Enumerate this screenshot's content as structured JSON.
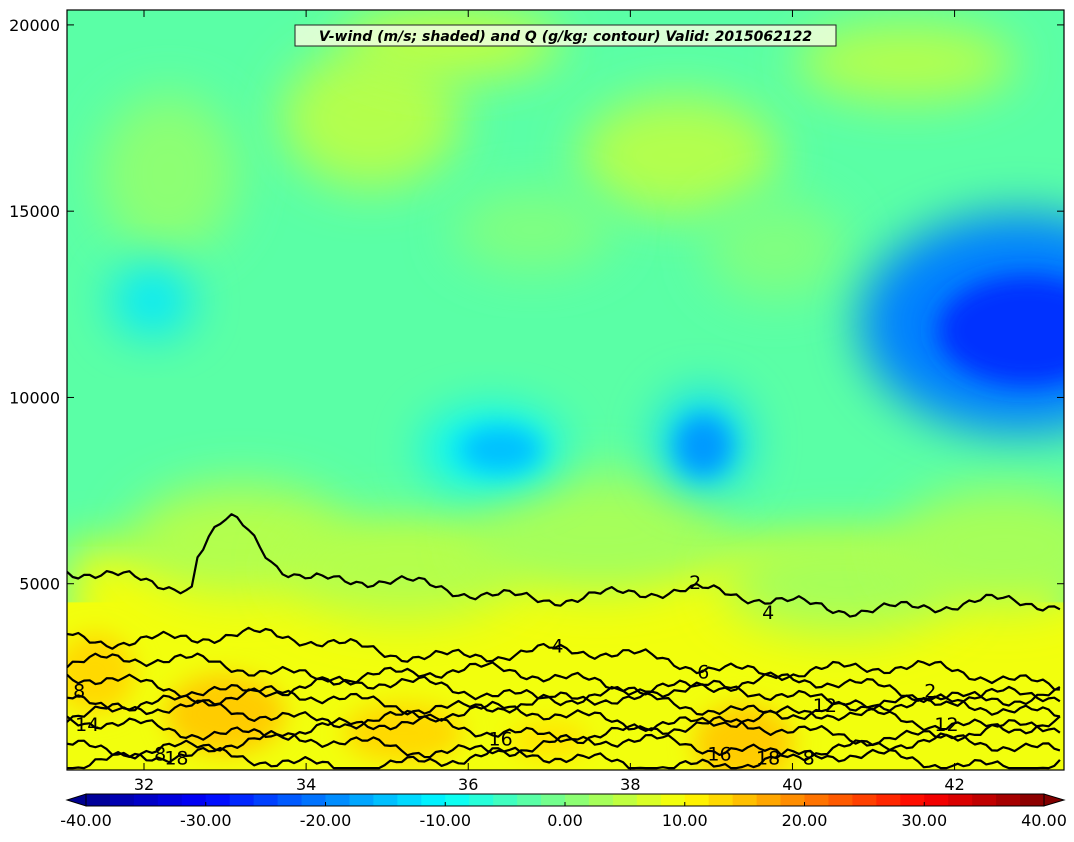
{
  "chart_data": {
    "type": "heatmap",
    "title": "V-wind (m/s; shaded) and Q (g/kg; contour) Valid: 2015062122",
    "xlabel": "",
    "ylabel": "",
    "xlim": [
      31.05,
      43.35
    ],
    "ylim": [
      0,
      20400
    ],
    "x_ticks": [
      32,
      34,
      36,
      38,
      40,
      42
    ],
    "y_ticks": [
      5000,
      10000,
      15000,
      20000
    ],
    "x_tick_labels": [
      "32",
      "34",
      "36",
      "38",
      "40",
      "42"
    ],
    "y_tick_labels": [
      "5000",
      "10000",
      "15000",
      "20000"
    ],
    "shading": {
      "variable": "V-wind",
      "units": "m/s",
      "levels_range": [
        -40,
        40
      ],
      "colorbar_ticks": [
        -40,
        -30,
        -20,
        -10,
        0,
        10,
        20,
        30,
        40
      ],
      "colorbar_tick_labels": [
        "-40.00",
        "-30.00",
        "-20.00",
        "-10.00",
        "0.00",
        "10.00",
        "20.00",
        "30.00",
        "40.00"
      ],
      "colormap": [
        "#00008f",
        "#0000ff",
        "#0080ff",
        "#00ffff",
        "#80ff80",
        "#ffff00",
        "#ff8000",
        "#ff0000",
        "#800000"
      ],
      "regions": [
        {
          "name": "upper-troposphere",
          "value": -3
        },
        {
          "name": "jet-core-east",
          "value": -20,
          "center": [
            42.8,
            12000
          ]
        },
        {
          "name": "band-negative-mid",
          "value": -11,
          "center": [
            36.3,
            8600
          ]
        },
        {
          "name": "band-negative-mid-2",
          "value": -13,
          "center": [
            38.9,
            8800
          ]
        },
        {
          "name": "west-negative",
          "value": -12,
          "center": [
            32.1,
            12600
          ]
        },
        {
          "name": "boundary-layer-positive",
          "value": 9
        },
        {
          "name": "near-surface-max",
          "value": 13,
          "center": [
            39.4,
            800
          ]
        }
      ]
    },
    "contours": {
      "variable": "Q",
      "units": "g/kg",
      "levels": [
        2,
        4,
        6,
        8,
        10,
        12,
        14,
        16,
        18
      ],
      "labels": [
        {
          "text": "2",
          "x": 38.8,
          "y": 5000
        },
        {
          "text": "4",
          "x": 39.7,
          "y": 4200
        },
        {
          "text": "4",
          "x": 37.1,
          "y": 3300
        },
        {
          "text": "6",
          "x": 38.9,
          "y": 2600
        },
        {
          "text": "2",
          "x": 41.7,
          "y": 2100
        },
        {
          "text": "8",
          "x": 31.2,
          "y": 2100
        },
        {
          "text": "14",
          "x": 31.3,
          "y": 1200
        },
        {
          "text": "16",
          "x": 36.4,
          "y": 800
        },
        {
          "text": "16",
          "x": 39.1,
          "y": 400
        },
        {
          "text": "18",
          "x": 39.7,
          "y": 300
        },
        {
          "text": "8",
          "x": 40.2,
          "y": 300
        },
        {
          "text": "18",
          "x": 32.4,
          "y": 300
        },
        {
          "text": "8",
          "x": 32.2,
          "y": 400
        },
        {
          "text": "12",
          "x": 40.4,
          "y": 1700
        },
        {
          "text": "12",
          "x": 41.9,
          "y": 1200
        }
      ]
    },
    "grid": false,
    "legend": "none",
    "colorbar": "bottom"
  }
}
